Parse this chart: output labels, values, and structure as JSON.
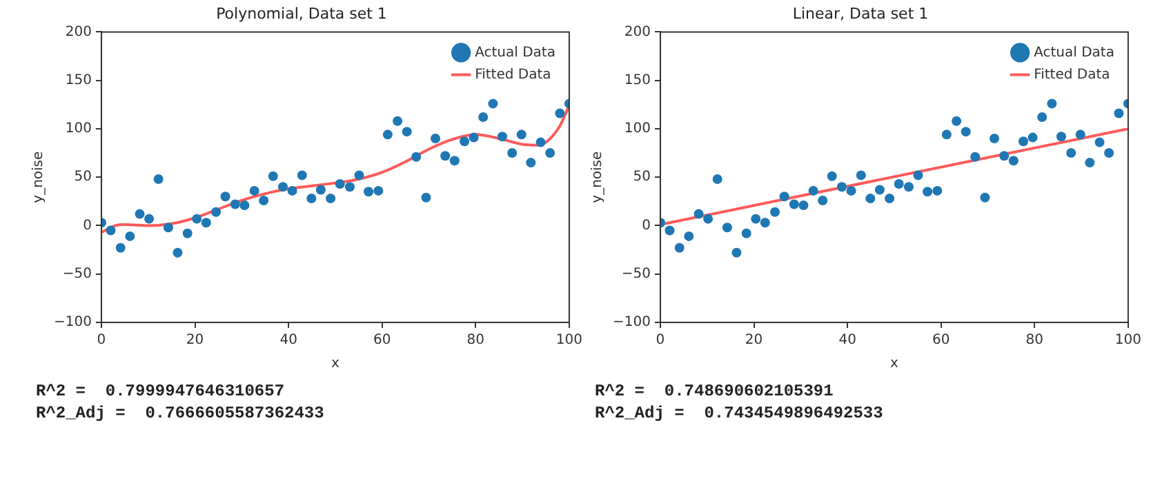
{
  "chart_data": [
    {
      "type": "scatter",
      "title": "Polynomial, Data set 1",
      "xlabel": "x",
      "ylabel": "y_noise",
      "xlim": [
        0,
        100
      ],
      "ylim": [
        -100,
        200
      ],
      "xticks": [
        0,
        20,
        40,
        60,
        80,
        100
      ],
      "yticks": [
        -100,
        -50,
        0,
        50,
        100,
        150,
        200
      ],
      "grid": false,
      "legend": "top right",
      "series": [
        {
          "name": "Actual Data",
          "color": "#1f77b4",
          "marker": "circle",
          "x": [
            0,
            2,
            4.1,
            6.1,
            8.2,
            10.2,
            12.2,
            14.3,
            16.3,
            18.4,
            20.4,
            22.4,
            24.5,
            26.5,
            28.6,
            30.6,
            32.7,
            34.7,
            36.7,
            38.8,
            40.8,
            42.9,
            44.9,
            46.9,
            49,
            51,
            53.1,
            55.1,
            57.1,
            59.2,
            61.2,
            63.3,
            65.3,
            67.3,
            69.4,
            71.4,
            73.5,
            75.5,
            77.6,
            79.6,
            81.6,
            83.7,
            85.7,
            87.8,
            89.8,
            91.8,
            93.9,
            95.9,
            98,
            100
          ],
          "values": [
            3,
            -5,
            -23,
            -11,
            12,
            7,
            48,
            -2,
            -28,
            -8,
            7,
            3,
            14,
            30,
            22,
            21,
            36,
            26,
            51,
            40,
            36,
            52,
            28,
            37,
            28,
            43,
            40,
            52,
            35,
            36,
            94,
            108,
            97,
            71,
            29,
            90,
            72,
            67,
            87,
            91,
            112,
            126,
            92,
            75,
            94,
            65,
            86,
            75,
            116,
            126
          ]
        },
        {
          "name": "Fitted Data",
          "type": "line",
          "color": "#ff5a5a",
          "marker": "none",
          "x": [
            0,
            3,
            5,
            10,
            15,
            20,
            25,
            30,
            35,
            40,
            45,
            50,
            55,
            60,
            65,
            70,
            75,
            80,
            85,
            90,
            93,
            95,
            98,
            100
          ],
          "values": [
            -7,
            0,
            1,
            0,
            2,
            8,
            17,
            26,
            33,
            38,
            41,
            44,
            48,
            55,
            66,
            79,
            89,
            94,
            90,
            84,
            83,
            86,
            103,
            124
          ]
        }
      ],
      "annotations": [
        "R^2 =  0.7999947646310657",
        "R^2_Adj =  0.7666605587362433"
      ]
    },
    {
      "type": "scatter",
      "title": "Linear, Data set 1",
      "xlabel": "x",
      "ylabel": "y_noise",
      "xlim": [
        0,
        100
      ],
      "ylim": [
        -100,
        200
      ],
      "xticks": [
        0,
        20,
        40,
        60,
        80,
        100
      ],
      "yticks": [
        -100,
        -50,
        0,
        50,
        100,
        150,
        200
      ],
      "grid": false,
      "legend": "top right",
      "series": [
        {
          "name": "Actual Data",
          "color": "#1f77b4",
          "marker": "circle",
          "x": [
            0,
            2,
            4.1,
            6.1,
            8.2,
            10.2,
            12.2,
            14.3,
            16.3,
            18.4,
            20.4,
            22.4,
            24.5,
            26.5,
            28.6,
            30.6,
            32.7,
            34.7,
            36.7,
            38.8,
            40.8,
            42.9,
            44.9,
            46.9,
            49,
            51,
            53.1,
            55.1,
            57.1,
            59.2,
            61.2,
            63.3,
            65.3,
            67.3,
            69.4,
            71.4,
            73.5,
            75.5,
            77.6,
            79.6,
            81.6,
            83.7,
            85.7,
            87.8,
            89.8,
            91.8,
            93.9,
            95.9,
            98,
            100
          ],
          "values": [
            3,
            -5,
            -23,
            -11,
            12,
            7,
            48,
            -2,
            -28,
            -8,
            7,
            3,
            14,
            30,
            22,
            21,
            36,
            26,
            51,
            40,
            36,
            52,
            28,
            37,
            28,
            43,
            40,
            52,
            35,
            36,
            94,
            108,
            97,
            71,
            29,
            90,
            72,
            67,
            87,
            91,
            112,
            126,
            92,
            75,
            94,
            65,
            86,
            75,
            116,
            126
          ]
        },
        {
          "name": "Fitted Data",
          "type": "line",
          "color": "#ff5a5a",
          "marker": "none",
          "x": [
            0,
            100
          ],
          "values": [
            1,
            100
          ]
        }
      ],
      "annotations": [
        "R^2 =  0.748690602105391",
        "R^2_Adj =  0.7434549896492533"
      ]
    }
  ]
}
